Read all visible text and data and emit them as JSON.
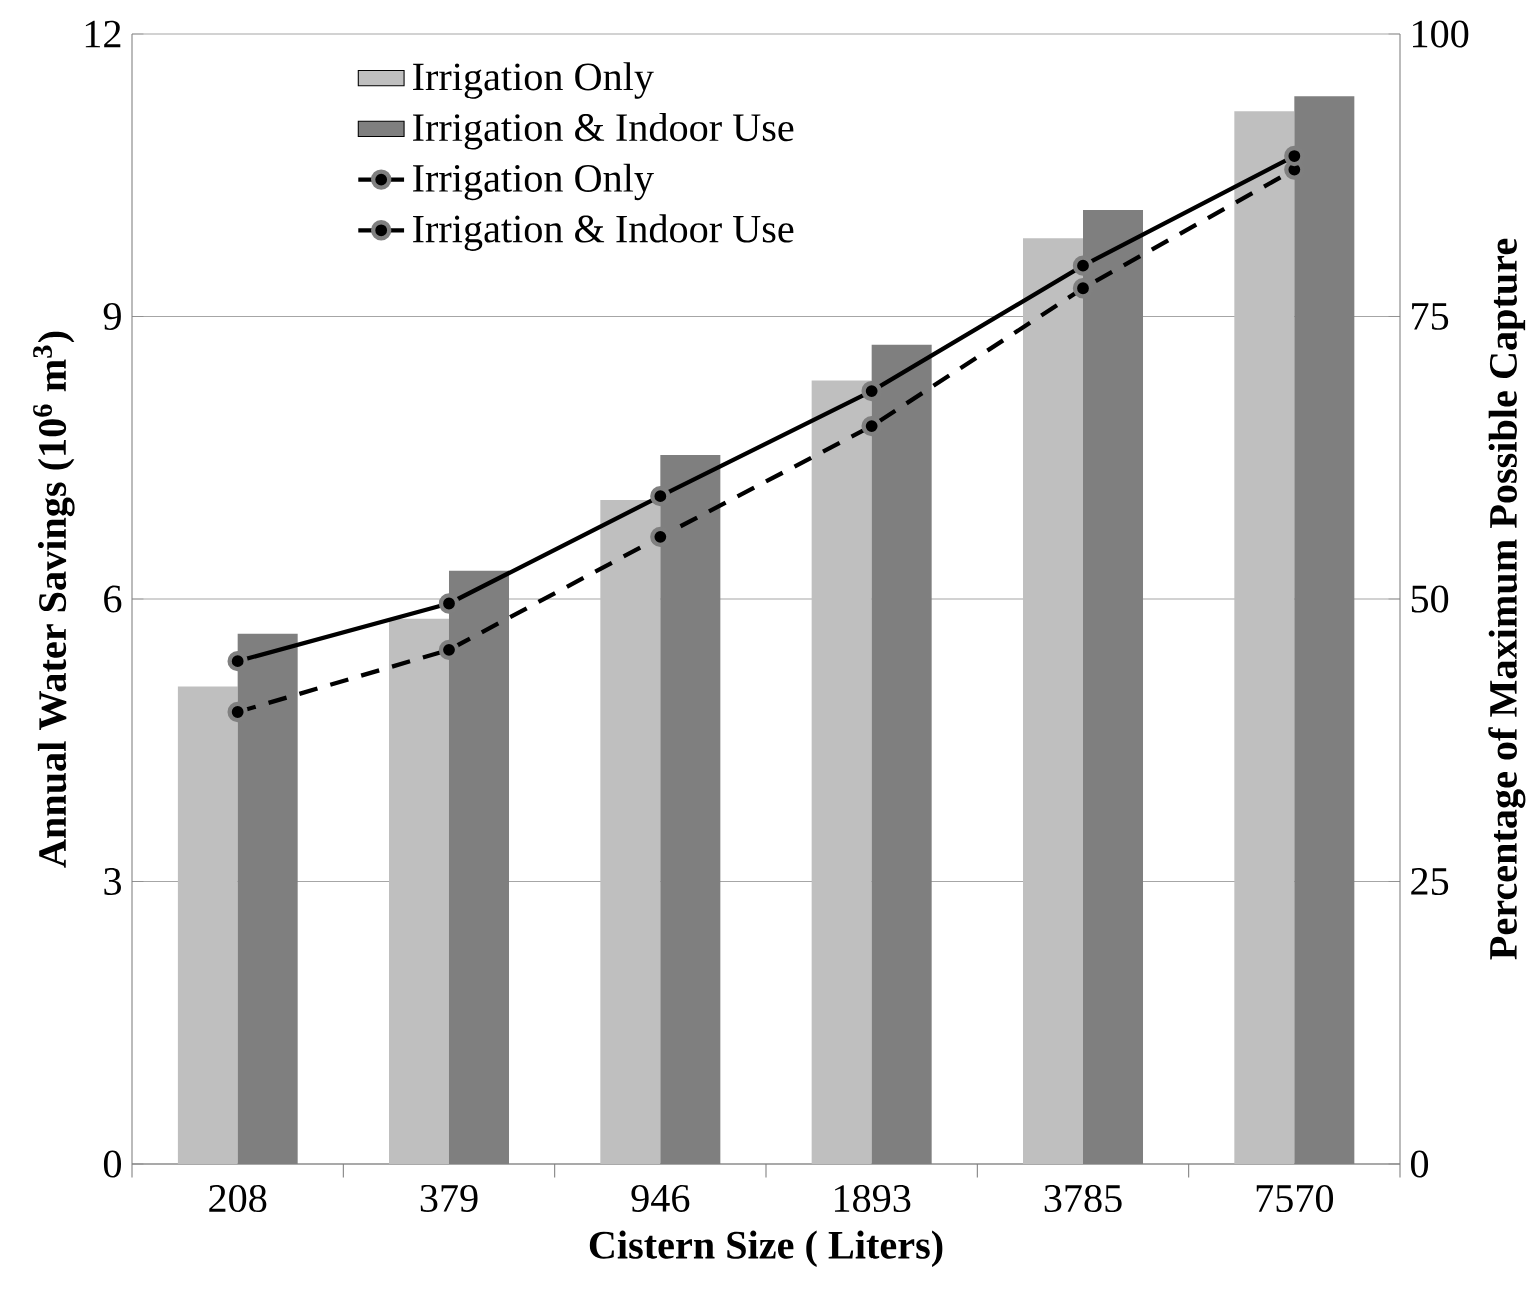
{
  "chart_data": {
    "type": "bar",
    "xlabel": "Cistern Size ( Liters)",
    "ylabel": "Annual Water  Savings (10$^{6}$ m$^{3}$)",
    "y2label": "Percentage of Maximum Possible Capture",
    "categories": [
      "208",
      "379",
      "946",
      "1893",
      "3785",
      "7570"
    ],
    "series": [
      {
        "name": "Irrigation Only",
        "color": "#bfbfbf",
        "values": [
          5.07,
          5.79,
          7.05,
          8.32,
          9.83,
          11.18
        ]
      },
      {
        "name": "Irrigation & Indoor Use",
        "color": "#7f7f7f",
        "values": [
          5.63,
          6.3,
          7.53,
          8.7,
          10.13,
          11.34
        ]
      },
      {
        "name": "Irrigation Only",
        "type": "line",
        "axis": "y2",
        "color": "#000000",
        "line_style": "dashed",
        "marker": "circle",
        "values": [
          40.0,
          45.5,
          55.5,
          65.3,
          77.5,
          88.0
        ]
      },
      {
        "name": "Irrigation & Indoor Use",
        "type": "line",
        "axis": "y2",
        "color": "#000000",
        "line_style": "solid",
        "marker": "circle",
        "values": [
          44.5,
          49.6,
          59.1,
          68.4,
          79.5,
          89.2
        ]
      }
    ],
    "ylim": [
      0,
      12
    ],
    "yticks": [
      0,
      3,
      6,
      9,
      12
    ],
    "y2lim": [
      0,
      100
    ],
    "y2ticks": [
      0,
      25,
      50,
      75,
      100
    ],
    "grid": "y",
    "legend": "top left"
  }
}
